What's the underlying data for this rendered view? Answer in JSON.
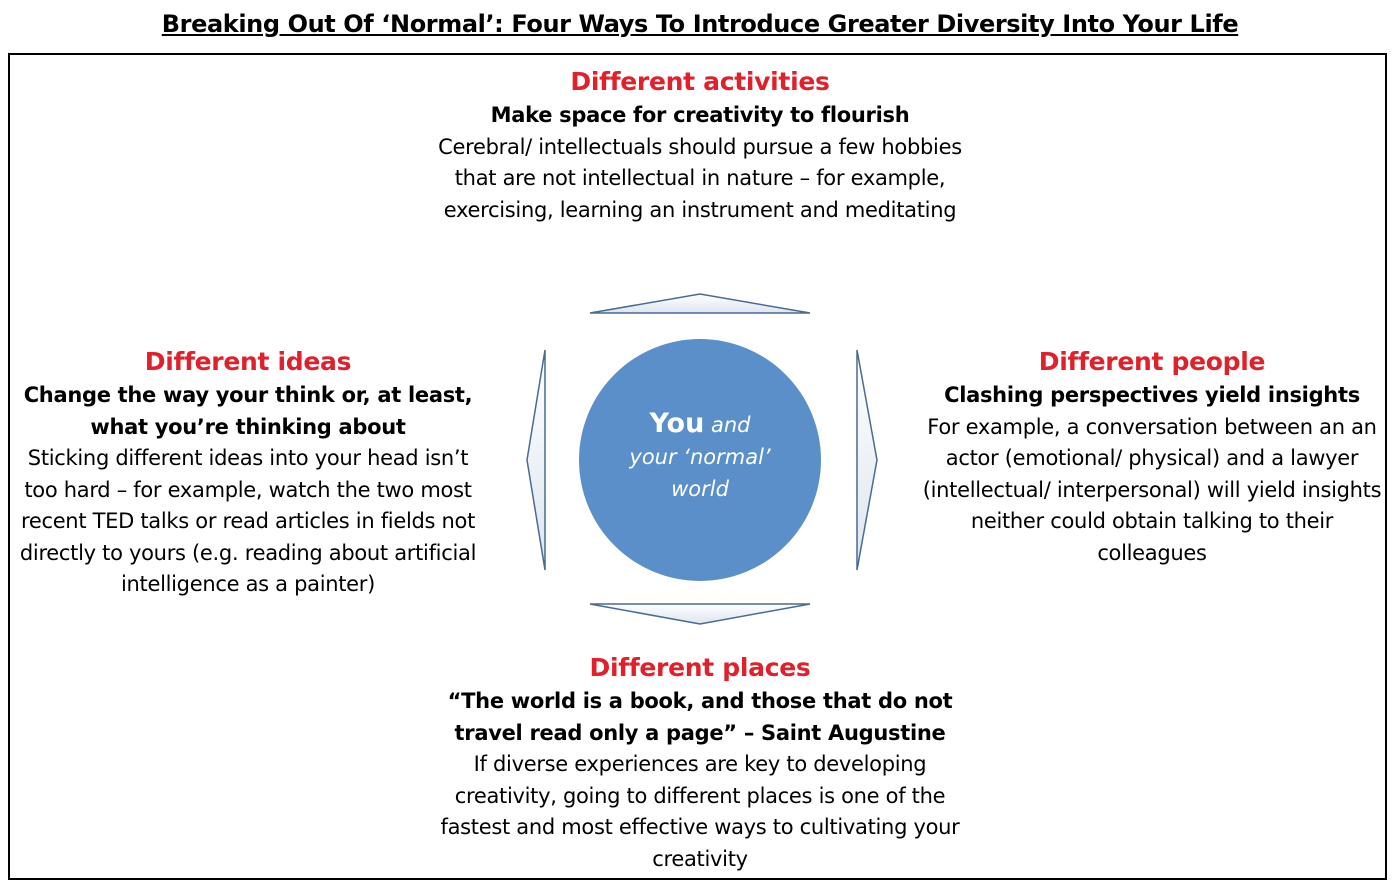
{
  "title": "Breaking Out Of ‘Normal’: Four Ways To Introduce Greater Diversity Into Your Life",
  "center": {
    "you": "You",
    "and": "and",
    "line2": "your ‘normal’",
    "line3": "world",
    "fill_color": "#5b8fc9"
  },
  "top": {
    "heading": "Different activities",
    "subheading": "Make space for creativity to flourish",
    "body": "Cerebral/ intellectuals should pursue a few hobbies that are not intellectual in nature – for example, exercising, learning an instrument and meditating"
  },
  "left": {
    "heading": "Different ideas",
    "subheading": "Change the way your think or, at least, what you’re thinking about",
    "body": "Sticking different ideas into your head isn’t too hard – for example, watch the two most recent TED talks or read articles in fields not directly to yours (e.g. reading about artificial intelligence as a painter)"
  },
  "right": {
    "heading": "Different people",
    "subheading": "Clashing perspectives yield insights",
    "body": "For example, a conversation between an an actor (emotional/ physical) and a lawyer (intellectual/ interpersonal) will yield insights neither could obtain talking to their colleagues"
  },
  "bottom": {
    "heading": "Different places",
    "subheading": "“The world is a book, and those that do not travel read only a page” – Saint Augustine",
    "body": "If diverse experiences are key to developing creativity, going to different places is one of the fastest and most effective ways to cultivating your creativity"
  },
  "colors": {
    "heading": "#e0202a",
    "arrow_fill": "#eef2f8",
    "arrow_stroke": "#4a6a92"
  }
}
